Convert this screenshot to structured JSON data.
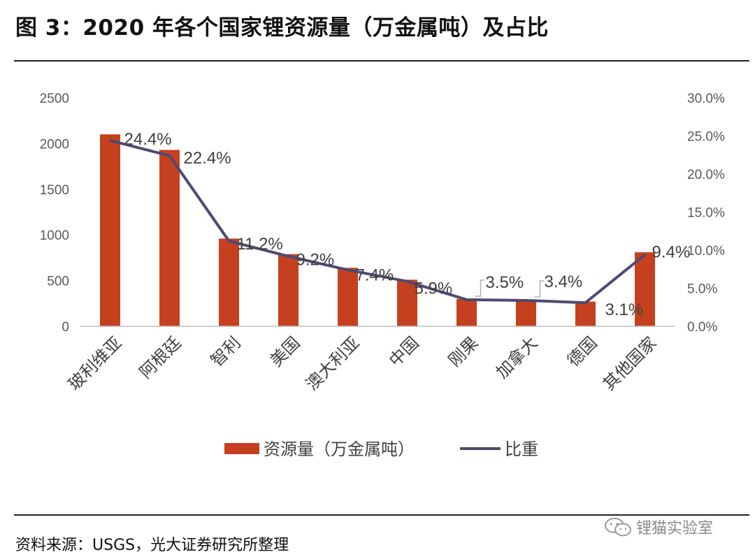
{
  "title": "图 3：2020 年各个国家锂资源量（万金属吨）及占比",
  "source": "资料来源：USGS，光大证券研究所整理",
  "watermark": "锂猫实验室",
  "colors": {
    "bar": "#c5401f",
    "line": "#4e4a72",
    "axis": "#bfbfbf",
    "tick": "#595959"
  },
  "chart_data": {
    "type": "bar+line",
    "title": "",
    "categories": [
      "玻利维亚",
      "阿根廷",
      "智利",
      "美国",
      "澳大利亚",
      "中国",
      "刚果",
      "加拿大",
      "德国",
      "其他国家"
    ],
    "series": [
      {
        "name": "资源量（万金属吨）",
        "type": "bar",
        "axis": "left",
        "values": [
          2100,
          1930,
          960,
          790,
          640,
          510,
          300,
          290,
          270,
          810
        ]
      },
      {
        "name": "比重",
        "type": "line",
        "axis": "right",
        "values": [
          24.4,
          22.4,
          11.2,
          9.2,
          7.4,
          5.9,
          3.5,
          3.4,
          3.1,
          9.4
        ],
        "labels": [
          "24.4%",
          "22.4%",
          "11.2%",
          "9.2%",
          "7.4%",
          "5.9%",
          "3.5%",
          "3.4%",
          "3.1%",
          "9.4%"
        ]
      }
    ],
    "y_left": {
      "ylim": [
        0,
        2500
      ],
      "ticks": [
        "0",
        "500",
        "1000",
        "1500",
        "2000",
        "2500"
      ]
    },
    "y_right": {
      "ylim": [
        0,
        30
      ],
      "ticks": [
        "0.0%",
        "5.0%",
        "10.0%",
        "15.0%",
        "20.0%",
        "25.0%",
        "30.0%"
      ]
    },
    "legend": {
      "position": "bottom",
      "entries": [
        "资源量（万金属吨）",
        "比重"
      ]
    },
    "grid": false
  }
}
